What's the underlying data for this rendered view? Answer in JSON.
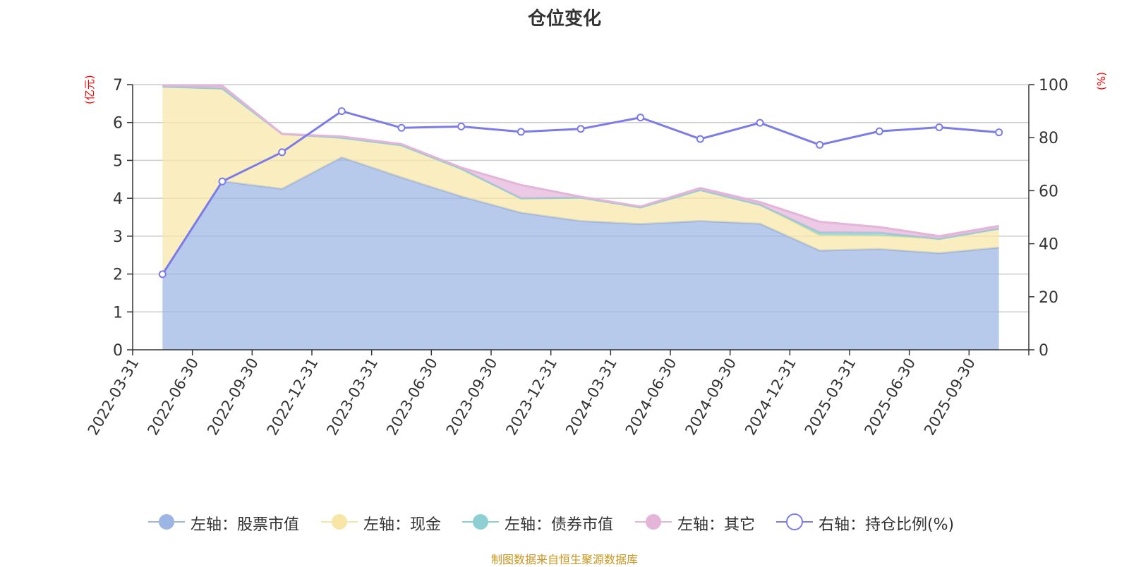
{
  "title": "仓位变化",
  "source": "制图数据来自恒生聚源数据库",
  "left_unit": "(亿元)",
  "right_unit": "(%)",
  "legend": [
    {
      "label": "左轴：股票市值",
      "color": "#9db5e3",
      "icon": "filled-circle-icon"
    },
    {
      "label": "左轴：现金",
      "color": "#f8e6a6",
      "icon": "filled-circle-icon"
    },
    {
      "label": "左轴：债券市值",
      "color": "#8dcfd3",
      "icon": "filled-circle-icon"
    },
    {
      "label": "左轴：其它",
      "color": "#e5b4d9",
      "icon": "filled-circle-icon"
    },
    {
      "label": "右轴：持仓比例(%)",
      "color": "#7b7bea",
      "icon": "hollow-circle-icon"
    }
  ],
  "chart_data": {
    "type": "area",
    "title": "仓位变化",
    "categories": [
      "2022-03-31",
      "2022-06-30",
      "2022-09-30",
      "2022-12-31",
      "2023-03-31",
      "2023-06-30",
      "2023-09-30",
      "2023-12-31",
      "2024-03-31",
      "2024-06-30",
      "2024-09-30",
      "2024-12-31",
      "2025-03-31",
      "2025-06-30",
      "2025-09-30"
    ],
    "left_axis": {
      "label": "(亿元)",
      "min": 0,
      "max": 7,
      "ticks": [
        0,
        1,
        2,
        3,
        4,
        5,
        6,
        7
      ]
    },
    "right_axis": {
      "label": "(%)",
      "min": 0,
      "max": 100,
      "ticks": [
        0,
        20,
        40,
        60,
        80,
        100
      ]
    },
    "series": [
      {
        "name": "左轴：股票市值",
        "axis": "left",
        "type": "stacked-area",
        "color": "#9db5e3",
        "values": [
          2.0,
          4.45,
          4.25,
          5.08,
          4.55,
          4.05,
          3.62,
          3.4,
          3.32,
          3.4,
          3.33,
          2.62,
          2.66,
          2.55,
          2.7
        ]
      },
      {
        "name": "左轴：现金",
        "axis": "left",
        "type": "stacked-area",
        "color": "#f8e6a6",
        "values": [
          4.95,
          2.45,
          1.45,
          0.52,
          0.85,
          0.73,
          0.38,
          0.62,
          0.44,
          0.82,
          0.5,
          0.4,
          0.35,
          0.38,
          0.5
        ]
      },
      {
        "name": "左轴：债券市值",
        "axis": "left",
        "type": "stacked-area",
        "color": "#8dcfd3",
        "values": [
          0,
          0,
          0,
          0,
          0,
          0,
          0,
          0,
          0,
          0,
          0,
          0.08,
          0.08,
          0,
          0
        ]
      },
      {
        "name": "左轴：其它",
        "axis": "left",
        "type": "stacked-area",
        "color": "#e5b4d9",
        "values": [
          0.03,
          0.07,
          0.0,
          0.03,
          0.03,
          0.03,
          0.35,
          0.02,
          0.02,
          0.05,
          0.07,
          0.28,
          0.15,
          0.07,
          0.07
        ]
      },
      {
        "name": "右轴：持仓比例(%)",
        "axis": "right",
        "type": "line",
        "color": "#7b7bea",
        "values": [
          28.5,
          63.5,
          74.5,
          90.0,
          83.7,
          84.2,
          82.2,
          83.3,
          87.6,
          79.5,
          85.6,
          77.3,
          82.4,
          83.9,
          82.0
        ]
      }
    ]
  }
}
